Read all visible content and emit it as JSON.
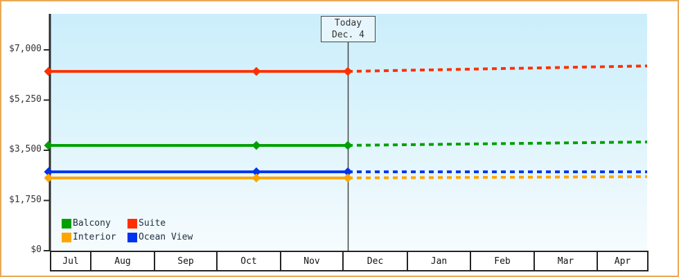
{
  "window": {
    "frame_border_color": "#eaa857",
    "background_color": "#ffffff",
    "plot_gradient_top": "#cbeefb",
    "plot_gradient_bottom": "#f6fcfe"
  },
  "legend": {
    "items": [
      {
        "label": "Balcony",
        "color": "#00A000"
      },
      {
        "label": "Suite",
        "color": "#FF3000"
      },
      {
        "label": "Interior",
        "color": "#FFA500"
      },
      {
        "label": "Ocean View",
        "color": "#0033EE"
      }
    ]
  },
  "chart_data": {
    "type": "line",
    "today_label": "Today",
    "today_date": "Dec. 4",
    "x_tick_labels": [
      "Jul",
      "Aug",
      "Sep",
      "Oct",
      "Nov",
      "Dec",
      "Jan",
      "Feb",
      "Mar",
      "Apr"
    ],
    "y_tick_labels": [
      "$0",
      "$1,750",
      "$3,500",
      "$5,250",
      "$7,000"
    ],
    "y_tick_values": [
      0,
      1750,
      3500,
      5250,
      7000
    ],
    "ylim": [
      0,
      7000
    ],
    "observed_point_positions": [
      "series start (mid-Jul)",
      "mid-Oct",
      "today (Dec. 4)"
    ],
    "projection": "dotted line from today (Dec. 4) to end of Apr",
    "marker_shape": "diamond",
    "legend_position": "bottom-left inside plot",
    "grid": "off",
    "series": [
      {
        "name": "Suite",
        "color": "#FF3000",
        "observed_values": [
          6250,
          6250,
          6250
        ],
        "projected_value": 6440
      },
      {
        "name": "Balcony",
        "color": "#00A000",
        "observed_values": [
          3670,
          3670,
          3670
        ],
        "projected_value": 3790
      },
      {
        "name": "Ocean View",
        "color": "#0033EE",
        "observed_values": [
          2750,
          2750,
          2750
        ],
        "projected_value": 2750
      },
      {
        "name": "Interior",
        "color": "#FFA500",
        "observed_values": [
          2535,
          2535,
          2535
        ],
        "projected_value": 2580
      }
    ]
  }
}
